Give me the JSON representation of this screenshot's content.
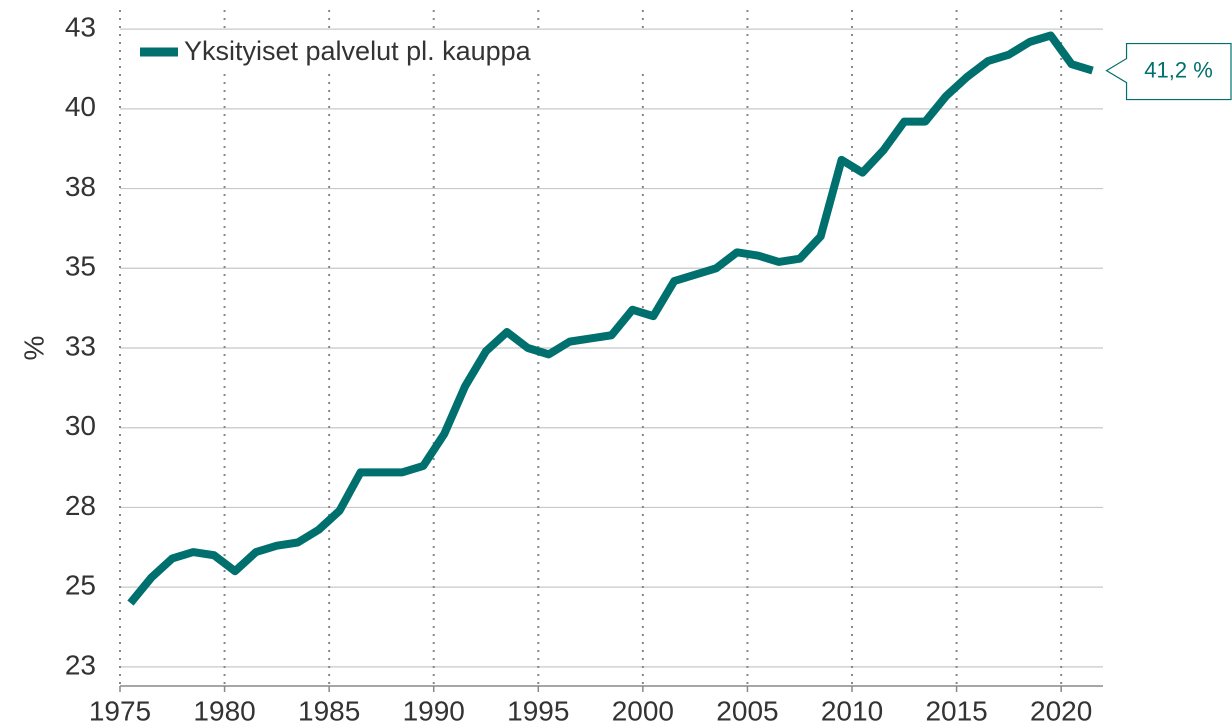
{
  "chart_data": {
    "type": "line",
    "ylabel": "%",
    "x": [
      1975.5,
      1976.5,
      1977.5,
      1978.5,
      1979.5,
      1980.5,
      1981.5,
      1982.5,
      1983.5,
      1984.5,
      1985.5,
      1986.5,
      1987.5,
      1988.5,
      1989.5,
      1990.5,
      1991.5,
      1992.5,
      1993.5,
      1994.5,
      1995.5,
      1996.5,
      1997.5,
      1998.5,
      1999.5,
      2000.5,
      2001.5,
      2002.5,
      2003.5,
      2004.5,
      2005.5,
      2006.5,
      2007.5,
      2008.5,
      2009.5,
      2010.5,
      2011.5,
      2012.5,
      2013.5,
      2014.5,
      2015.5,
      2016.5,
      2017.5,
      2018.5,
      2019.5,
      2020.5,
      2021.5
    ],
    "series": [
      {
        "name": "Yksityiset palvelut pl. kauppa",
        "color": "#00706e",
        "values": [
          24.5,
          25.3,
          25.9,
          26.1,
          26.0,
          25.5,
          26.1,
          26.3,
          26.4,
          26.8,
          27.4,
          28.6,
          28.6,
          28.6,
          28.8,
          29.8,
          31.3,
          32.4,
          33.0,
          32.5,
          32.3,
          32.7,
          32.8,
          32.9,
          33.7,
          33.5,
          34.6,
          34.8,
          35.0,
          35.5,
          35.4,
          35.2,
          35.3,
          36.0,
          38.4,
          38.0,
          38.7,
          39.6,
          39.6,
          40.4,
          41.0,
          41.5,
          41.7,
          42.1,
          42.3,
          41.4,
          41.2
        ]
      }
    ],
    "end_label": "41,2 %",
    "xlim": [
      1975,
      2022
    ],
    "xticks": [
      1975,
      1980,
      1985,
      1990,
      1995,
      2000,
      2005,
      2010,
      2015,
      2020
    ],
    "ylim": [
      21.9,
      43.1
    ],
    "yticks": [
      {
        "value": 22.5,
        "label": "23"
      },
      25,
      {
        "value": 27.5,
        "label": "28"
      },
      30,
      {
        "value": 32.5,
        "label": "33"
      },
      35,
      {
        "value": 37.5,
        "label": "38"
      },
      40,
      {
        "value": 42.5,
        "label": "43"
      }
    ],
    "grid": true,
    "legend": "upper left"
  }
}
